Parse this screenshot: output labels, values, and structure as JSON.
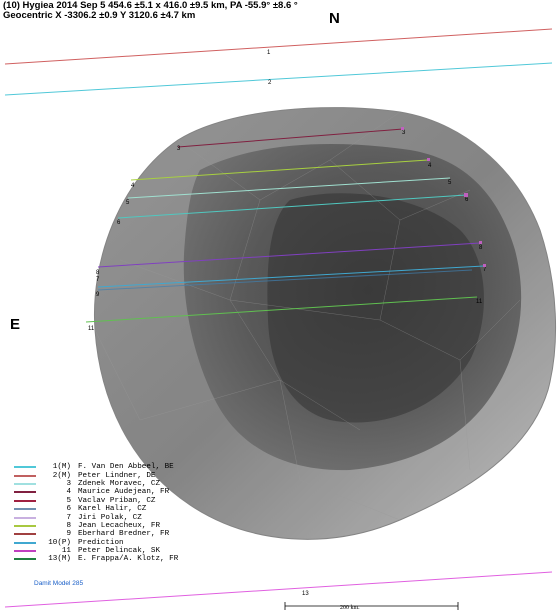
{
  "header": {
    "line1": "(10) Hygiea  2014 Sep 5  454.6 ±5.1 x 416.0 ±9.5 km, PA -55.9° ±8.6 °",
    "line2": "Geocentric  X  -3306.2 ±0.9  Y 3120.6 ±4.7 km"
  },
  "directions": {
    "north": "N",
    "east": "E"
  },
  "chords": [
    {
      "id": "1",
      "color": "#d06060",
      "label_start": "1",
      "label_end": ""
    },
    {
      "id": "2",
      "color": "#50c8d8",
      "label_start": "2",
      "label_end": ""
    },
    {
      "id": "3",
      "color": "#802040",
      "label_start": "3",
      "label_end": "3"
    },
    {
      "id": "4",
      "color": "#a8d040",
      "label_start": "4",
      "label_end": "4"
    },
    {
      "id": "5",
      "color": "#a0e0d0",
      "label_start": "5",
      "label_end": "5"
    },
    {
      "id": "6",
      "color": "#50c8c0",
      "label_start": "6",
      "label_end": "6"
    },
    {
      "id": "8",
      "color": "#8040c0",
      "label_start": "8",
      "label_end": "8"
    },
    {
      "id": "7",
      "color": "#40a8d0",
      "label_start": "7",
      "label_end": "7"
    },
    {
      "id": "9",
      "color": "#4080b0",
      "label_start": "9",
      "label_end": "9"
    },
    {
      "id": "11",
      "color": "#60c050",
      "label_start": "11",
      "label_end": "11"
    },
    {
      "id": "13",
      "color": "#e060e0",
      "label_start": "13",
      "label_end": ""
    }
  ],
  "legend": [
    {
      "num": "1(M)",
      "name": "F. Van Den Abbeel, BE",
      "color": "#50c8d8"
    },
    {
      "num": "2(M)",
      "name": "Peter Lindner, DE",
      "color": "#c06060"
    },
    {
      "num": "3",
      "name": "Zdenek Moravec, CZ",
      "color": "#a0e0e0"
    },
    {
      "num": "4",
      "name": "Maurice Audejean, FR",
      "color": "#802040"
    },
    {
      "num": "5",
      "name": "Vaclav Priban, CZ",
      "color": "#a02040"
    },
    {
      "num": "6",
      "name": "Karel Halir, CZ",
      "color": "#7090b0"
    },
    {
      "num": "7",
      "name": "Jiri Polak, CZ",
      "color": "#c8b0e0"
    },
    {
      "num": "8",
      "name": "Jean Lecacheux, FR",
      "color": "#a8c840"
    },
    {
      "num": "9",
      "name": "Eberhard Bredner, FR",
      "color": "#a04040"
    },
    {
      "num": "10(P)",
      "name": "Prediction",
      "color": "#40a8d0"
    },
    {
      "num": "11",
      "name": "Peter Delincak, SK",
      "color": "#c040c0"
    },
    {
      "num": "13(M)",
      "name": "E. Frappa/A. Klotz, FR",
      "color": "#208040"
    }
  ],
  "footer": {
    "model": "Damit Model 285",
    "scale": "200 km."
  }
}
